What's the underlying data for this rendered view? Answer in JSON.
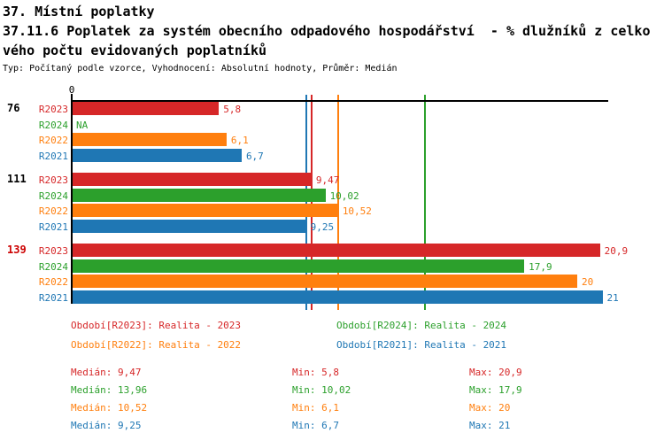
{
  "header": {
    "title": "37. Místní poplatky",
    "subtitle_line1": "37.11.6 Poplatek za systém obecního odpadového hospodářství  - % dlužníků z celko",
    "subtitle_line2": "vého počtu evidovaných poplatníků",
    "meta": "Typ: Počítaný podle vzorce, Vyhodnocení: Absolutní hodnoty, Průměr: Medián"
  },
  "chart_data": {
    "type": "bar",
    "orientation": "horizontal",
    "title": "37.11.6 Poplatek za systém obecního odpadového hospodářství - % dlužníků z celkového počtu evidovaných poplatníků",
    "xlabel": "",
    "ylabel": "",
    "axis": {
      "origin_label": "0",
      "xmin": 0,
      "xmax": 21.2,
      "grid": false
    },
    "series_colors": {
      "R2023": "#d62728",
      "R2024": "#2ca02c",
      "R2022": "#ff7f0e",
      "R2021": "#1f77b4"
    },
    "groups": [
      {
        "label": "76",
        "label_color": "#000000",
        "bars": [
          {
            "series": "R2023",
            "value": 5.8,
            "display": "5,8"
          },
          {
            "series": "R2024",
            "value": null,
            "display": "NA"
          },
          {
            "series": "R2022",
            "value": 6.1,
            "display": "6,1"
          },
          {
            "series": "R2021",
            "value": 6.7,
            "display": "6,7"
          }
        ]
      },
      {
        "label": "111",
        "label_color": "#000000",
        "bars": [
          {
            "series": "R2023",
            "value": 9.47,
            "display": "9,47"
          },
          {
            "series": "R2024",
            "value": 10.02,
            "display": "10,02"
          },
          {
            "series": "R2022",
            "value": 10.52,
            "display": "10,52"
          },
          {
            "series": "R2021",
            "value": 9.25,
            "display": "9,25"
          }
        ]
      },
      {
        "label": "139",
        "label_color": "#cc0000",
        "bars": [
          {
            "series": "R2023",
            "value": 20.9,
            "display": "20,9"
          },
          {
            "series": "R2024",
            "value": 17.9,
            "display": "17,9"
          },
          {
            "series": "R2022",
            "value": 20,
            "display": "20"
          },
          {
            "series": "R2021",
            "value": 21,
            "display": "21"
          }
        ]
      }
    ],
    "median_lines": [
      {
        "series": "R2021",
        "value": 9.25,
        "color": "#1f77b4"
      },
      {
        "series": "R2023",
        "value": 9.47,
        "color": "#d62728"
      },
      {
        "series": "R2022",
        "value": 10.52,
        "color": "#ff7f0e"
      },
      {
        "series": "R2024",
        "value": 13.96,
        "color": "#2ca02c"
      }
    ]
  },
  "legend": [
    {
      "label": "Období[R2023]: Realita - 2023",
      "color": "#d62728"
    },
    {
      "label": "Období[R2024]: Realita - 2024",
      "color": "#2ca02c"
    },
    {
      "label": "Období[R2022]: Realita - 2022",
      "color": "#ff7f0e"
    },
    {
      "label": "Období[R2021]: Realita - 2021",
      "color": "#1f77b4"
    }
  ],
  "stat_labels": {
    "median": "Medián",
    "min": "Min",
    "max": "Max"
  },
  "stats": [
    {
      "color": "#d62728",
      "median": "9,47",
      "min": "5,8",
      "max": "20,9"
    },
    {
      "color": "#2ca02c",
      "median": "13,96",
      "min": "10,02",
      "max": "17,9"
    },
    {
      "color": "#ff7f0e",
      "median": "10,52",
      "min": "6,1",
      "max": "20"
    },
    {
      "color": "#1f77b4",
      "median": "9,25",
      "min": "6,7",
      "max": "21"
    }
  ]
}
